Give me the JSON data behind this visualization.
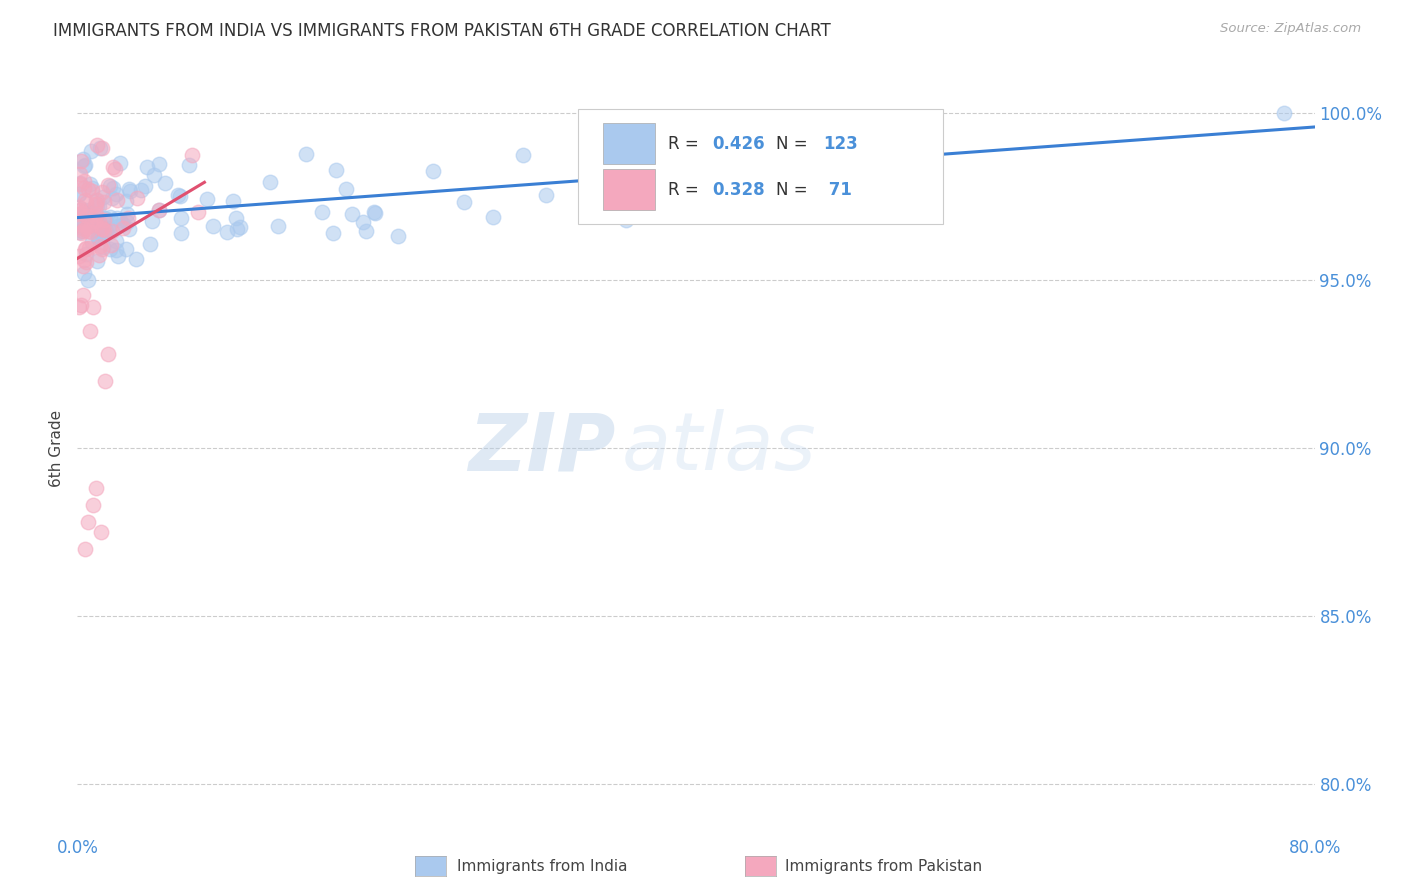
{
  "title": "IMMIGRANTS FROM INDIA VS IMMIGRANTS FROM PAKISTAN 6TH GRADE CORRELATION CHART",
  "source": "Source: ZipAtlas.com",
  "ylabel": "6th Grade",
  "ytick_labels": [
    "80.0%",
    "85.0%",
    "90.0%",
    "95.0%",
    "100.0%"
  ],
  "ytick_values": [
    0.8,
    0.85,
    0.9,
    0.95,
    1.0
  ],
  "xlim": [
    0.0,
    0.8
  ],
  "ylim": [
    0.785,
    1.015
  ],
  "india_R": 0.426,
  "india_N": 123,
  "pakistan_R": 0.328,
  "pakistan_N": 71,
  "india_color": "#aac9ee",
  "pakistan_color": "#f4a8be",
  "trendline_india_color": "#3a7fd4",
  "trendline_pakistan_color": "#e05070",
  "legend_label_india": "Immigrants from India",
  "legend_label_pakistan": "Immigrants from Pakistan",
  "watermark_zip": "ZIP",
  "watermark_atlas": "atlas",
  "background_color": "#ffffff",
  "grid_color": "#cccccc",
  "title_color": "#333333",
  "axis_label_color": "#4a90d9",
  "source_color": "#aaaaaa"
}
